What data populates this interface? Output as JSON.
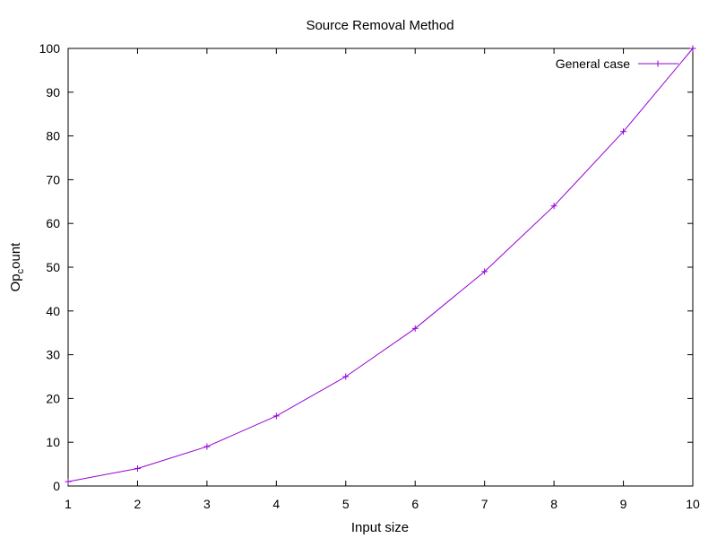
{
  "chart_data": {
    "type": "line",
    "title": "Source Removal Method",
    "xlabel": "Input size",
    "ylabel": "Op_count",
    "xlim": [
      1,
      10
    ],
    "ylim": [
      0,
      100
    ],
    "xticks": [
      1,
      2,
      3,
      4,
      5,
      6,
      7,
      8,
      9,
      10
    ],
    "yticks": [
      0,
      10,
      20,
      30,
      40,
      50,
      60,
      70,
      80,
      90,
      100
    ],
    "grid": false,
    "legend_position": "top-right",
    "series": [
      {
        "name": "General case",
        "color": "#9400d3",
        "marker": "plus",
        "x": [
          1,
          2,
          3,
          4,
          5,
          6,
          7,
          8,
          9,
          10
        ],
        "y": [
          1,
          4,
          9,
          16,
          25,
          36,
          49,
          64,
          81,
          100
        ]
      }
    ]
  }
}
